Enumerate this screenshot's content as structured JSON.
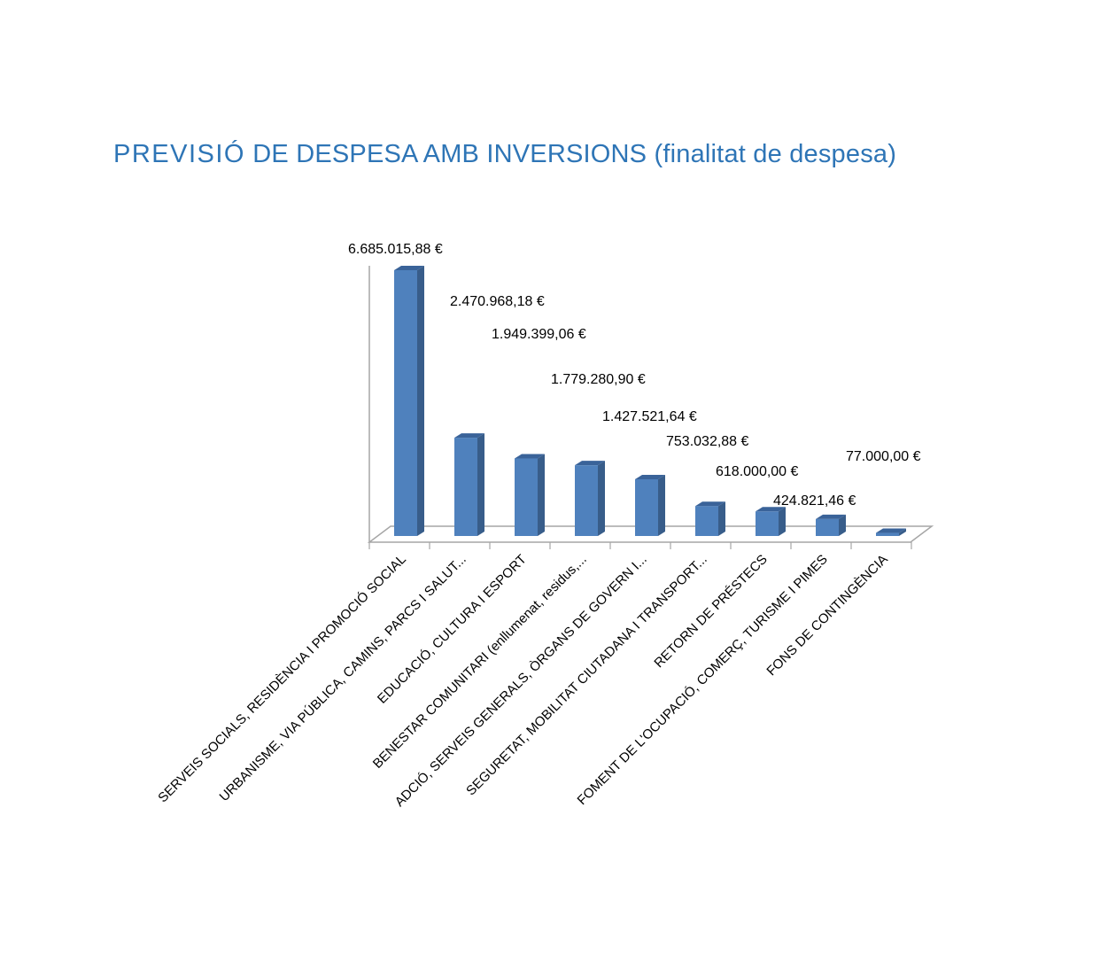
{
  "title": {
    "lead": "PREVISIÓ",
    "rest": " DE DESPESA AMB INVERSIONS (finalitat de despesa)"
  },
  "colors": {
    "bar_front": "#4f81bd",
    "bar_side": "#385d8a",
    "bar_top": "#3a6399",
    "title": "#2e75b6",
    "axis": "#a6a6a6"
  },
  "chart_data": {
    "type": "bar",
    "style": "3d-column",
    "title": "PREVISIÓ DE DESPESA AMB INVERSIONS (finalitat de despesa)",
    "categories": [
      "SERVEIS SOCIALS, RESIDÈNCIA I PROMOCIÓ SOCIAL",
      "URBANISME, VIA PÚBLICA, CAMINS, PARCS I SALUT...",
      "EDUCACIÓ, CULTURA I ESPORT",
      "BENESTAR COMUNITARI (enllumenat, residus,...",
      "ADCIÓ, SERVEIS GENERALS, ÒRGANS DE GOVERN I...",
      "SEGURETAT, MOBILITAT CIUTADANA I TRANSPORT...",
      "RETORN DE PRÉSTECS",
      "FOMENT DE L'OCUPACIÓ, COMERÇ, TURISME I PIMES",
      "FONS DE CONTINGÈNCIA"
    ],
    "values": [
      6685015.88,
      2470968.18,
      1949399.06,
      1779280.9,
      1427521.64,
      753032.88,
      618000.0,
      424821.46,
      77000.0
    ],
    "data_labels": [
      "6.685.015,88 €",
      "2.470.968,18 €",
      "1.949.399,06 €",
      "1.779.280,90 €",
      "1.427.521,64 €",
      "753.032,88 €",
      "618.000,00 €",
      "424.821,46 €",
      "77.000,00 €"
    ],
    "ylim": [
      0,
      7000000
    ],
    "grid": false,
    "legend": "none",
    "xlabel": "",
    "ylabel": ""
  }
}
